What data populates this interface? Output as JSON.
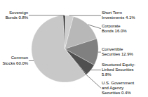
{
  "chart_data": {
    "type": "pie",
    "categories": [
      "Short Term\nInvestments 4.1%",
      "Corporate\nBonds 16.0%",
      "Convertible\nSecurities 12.9%",
      "Structured Equity-\nLinked Securities\n5.8%",
      "U.S. Government\nand Agency\nSecurities 0.4%",
      "Common\nStocks 60.0%",
      "Sovereign\nBonds 0.8%"
    ],
    "values": [
      4.1,
      16.0,
      12.9,
      5.8,
      0.4,
      60.0,
      0.8
    ],
    "colors": [
      "#d0d0d0",
      "#b8b8b8",
      "#808080",
      "#505050",
      "#181818",
      "#c8c8c8",
      "#101010"
    ]
  }
}
